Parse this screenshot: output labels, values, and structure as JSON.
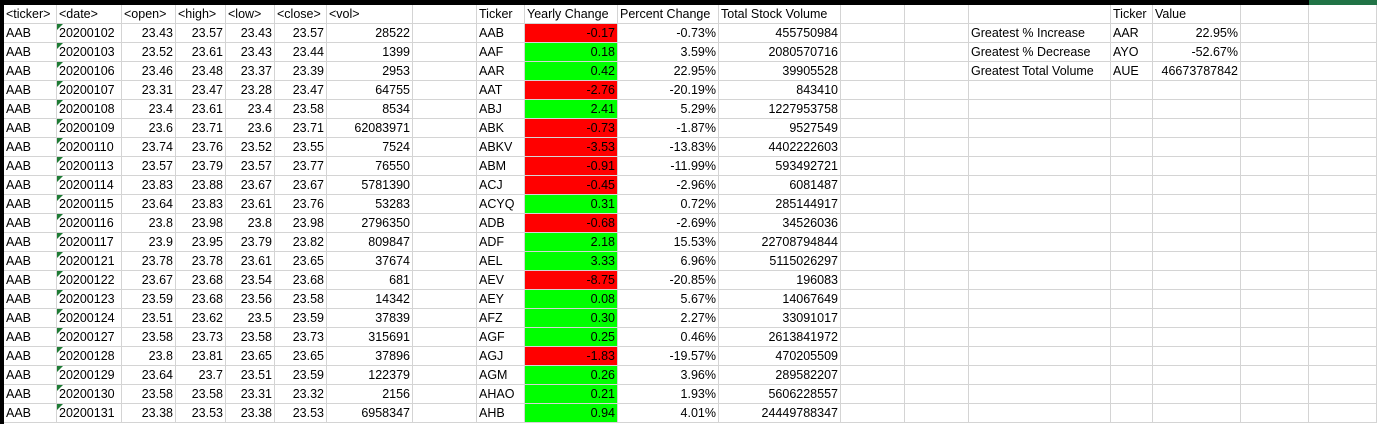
{
  "raw_headers": [
    "<ticker>",
    "<date>",
    "<open>",
    "<high>",
    "<low>",
    "<close>",
    "<vol>"
  ],
  "raw_rows": [
    [
      "AAB",
      "20200102",
      "23.43",
      "23.57",
      "23.43",
      "23.57",
      "28522"
    ],
    [
      "AAB",
      "20200103",
      "23.52",
      "23.61",
      "23.43",
      "23.44",
      "1399"
    ],
    [
      "AAB",
      "20200106",
      "23.46",
      "23.48",
      "23.37",
      "23.39",
      "2953"
    ],
    [
      "AAB",
      "20200107",
      "23.31",
      "23.47",
      "23.28",
      "23.47",
      "64755"
    ],
    [
      "AAB",
      "20200108",
      "23.4",
      "23.61",
      "23.4",
      "23.58",
      "8534"
    ],
    [
      "AAB",
      "20200109",
      "23.6",
      "23.71",
      "23.6",
      "23.71",
      "62083971"
    ],
    [
      "AAB",
      "20200110",
      "23.74",
      "23.76",
      "23.52",
      "23.55",
      "7524"
    ],
    [
      "AAB",
      "20200113",
      "23.57",
      "23.79",
      "23.57",
      "23.77",
      "76550"
    ],
    [
      "AAB",
      "20200114",
      "23.83",
      "23.88",
      "23.67",
      "23.67",
      "5781390"
    ],
    [
      "AAB",
      "20200115",
      "23.64",
      "23.83",
      "23.61",
      "23.76",
      "53283"
    ],
    [
      "AAB",
      "20200116",
      "23.8",
      "23.98",
      "23.8",
      "23.98",
      "2796350"
    ],
    [
      "AAB",
      "20200117",
      "23.9",
      "23.95",
      "23.79",
      "23.82",
      "809847"
    ],
    [
      "AAB",
      "20200121",
      "23.78",
      "23.78",
      "23.61",
      "23.65",
      "37674"
    ],
    [
      "AAB",
      "20200122",
      "23.67",
      "23.68",
      "23.54",
      "23.68",
      "681"
    ],
    [
      "AAB",
      "20200123",
      "23.59",
      "23.68",
      "23.56",
      "23.58",
      "14342"
    ],
    [
      "AAB",
      "20200124",
      "23.51",
      "23.62",
      "23.5",
      "23.59",
      "37839"
    ],
    [
      "AAB",
      "20200127",
      "23.58",
      "23.73",
      "23.58",
      "23.73",
      "315691"
    ],
    [
      "AAB",
      "20200128",
      "23.8",
      "23.81",
      "23.65",
      "23.65",
      "37896"
    ],
    [
      "AAB",
      "20200129",
      "23.64",
      "23.7",
      "23.51",
      "23.59",
      "122379"
    ],
    [
      "AAB",
      "20200130",
      "23.58",
      "23.58",
      "23.31",
      "23.32",
      "2156"
    ],
    [
      "AAB",
      "20200131",
      "23.38",
      "23.53",
      "23.38",
      "23.53",
      "6958347"
    ]
  ],
  "summary_headers": [
    "Ticker",
    "Yearly Change",
    "Percent Change",
    "Total Stock Volume"
  ],
  "summary_rows": [
    [
      "AAB",
      "-0.17",
      "-0.73%",
      "455750984"
    ],
    [
      "AAF",
      "0.18",
      "3.59%",
      "2080570716"
    ],
    [
      "AAR",
      "0.42",
      "22.95%",
      "39905528"
    ],
    [
      "AAT",
      "-2.76",
      "-20.19%",
      "843410"
    ],
    [
      "ABJ",
      "2.41",
      "5.29%",
      "1227953758"
    ],
    [
      "ABK",
      "-0.73",
      "-1.87%",
      "9527549"
    ],
    [
      "ABKV",
      "-3.53",
      "-13.83%",
      "4402222603"
    ],
    [
      "ABM",
      "-0.91",
      "-11.99%",
      "593492721"
    ],
    [
      "ACJ",
      "-0.45",
      "-2.96%",
      "6081487"
    ],
    [
      "ACYQ",
      "0.31",
      "0.72%",
      "285144917"
    ],
    [
      "ADB",
      "-0.68",
      "-2.69%",
      "34526036"
    ],
    [
      "ADF",
      "2.18",
      "15.53%",
      "22708794844"
    ],
    [
      "AEL",
      "3.33",
      "6.96%",
      "5115026297"
    ],
    [
      "AEV",
      "-8.75",
      "-20.85%",
      "196083"
    ],
    [
      "AEY",
      "0.08",
      "5.67%",
      "14067649"
    ],
    [
      "AFZ",
      "0.30",
      "2.27%",
      "33091017"
    ],
    [
      "AGF",
      "0.25",
      "0.46%",
      "2613841972"
    ],
    [
      "AGJ",
      "-1.83",
      "-19.57%",
      "470205509"
    ],
    [
      "AGM",
      "0.26",
      "3.96%",
      "289582207"
    ],
    [
      "AHAO",
      "0.21",
      "1.93%",
      "5606228557"
    ],
    [
      "AHB",
      "0.94",
      "4.01%",
      "24449788347"
    ]
  ],
  "greatest_headers": [
    "Ticker",
    "Value"
  ],
  "greatest_rows": [
    [
      "Greatest % Increase",
      "AAR",
      "22.95%"
    ],
    [
      "Greatest % Decrease",
      "AYO",
      "-52.67%"
    ],
    [
      "Greatest Total Volume",
      "AUE",
      "46673787842"
    ]
  ],
  "colors": {
    "positive": "#00ff00",
    "negative": "#ff0000",
    "gridline": "#d4d4d4"
  }
}
